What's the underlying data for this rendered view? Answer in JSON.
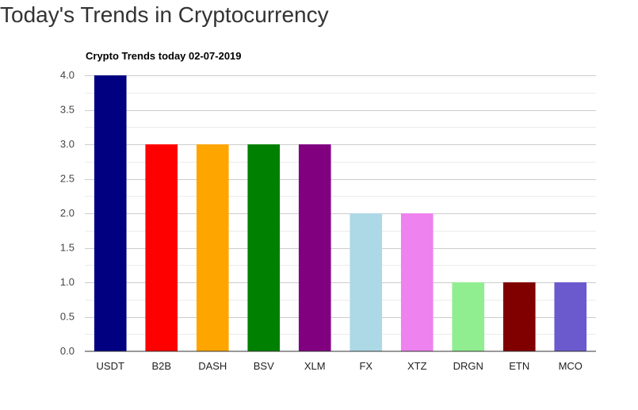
{
  "page": {
    "title": "Today's Trends in Cryptocurrency"
  },
  "chart_data": {
    "type": "bar",
    "title": "Crypto Trends today 02-07-2019",
    "xlabel": "",
    "ylabel": "",
    "categories": [
      "USDT",
      "B2B",
      "DASH",
      "BSV",
      "XLM",
      "FX",
      "XTZ",
      "DRGN",
      "ETN",
      "MCO"
    ],
    "values": [
      4,
      3,
      3,
      3,
      3,
      2,
      2,
      1,
      1,
      1
    ],
    "colors": [
      "#000080",
      "#ff0000",
      "#ffa500",
      "#008000",
      "#800080",
      "#add8e6",
      "#ee82ee",
      "#90ee90",
      "#800000",
      "#6a5acd"
    ],
    "ylim": [
      0,
      4
    ],
    "yticks": [
      "0.0",
      "0.5",
      "1.0",
      "1.5",
      "2.0",
      "2.5",
      "3.0",
      "3.5",
      "4.0"
    ],
    "grid": true,
    "legend": "none"
  }
}
